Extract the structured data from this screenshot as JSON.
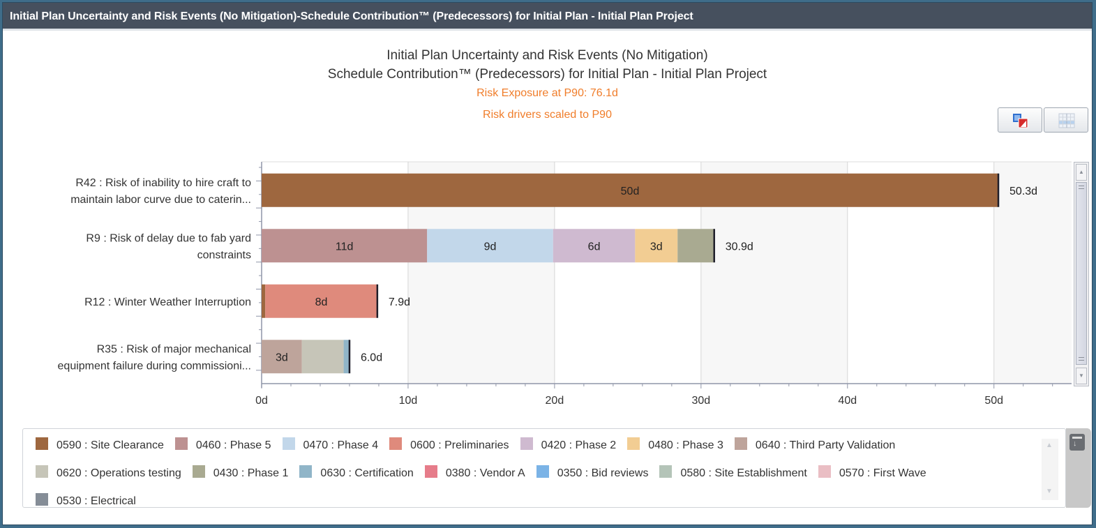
{
  "window": {
    "title": "Initial  Plan Uncertainty and Risk Events (No Mitigation)-Schedule Contribution™ (Predecessors) for Initial  Plan - Initial  Plan Project"
  },
  "toolbar": {
    "export_icon": "export-chart-icon",
    "grid_icon": "table-view-icon"
  },
  "chart_data": {
    "type": "bar",
    "orientation": "horizontal-stacked",
    "title": "Initial  Plan Uncertainty and Risk Events (No Mitigation)",
    "subtitle": "Schedule Contribution™ (Predecessors) for Initial  Plan - Initial  Plan Project",
    "annotations": [
      "Risk Exposure at P90: 76.1d",
      "Risk drivers scaled to P90"
    ],
    "xlabel": "",
    "ylabel": "",
    "xlim": [
      0,
      55.3
    ],
    "x_ticks": [
      0,
      10,
      20,
      30,
      40,
      50
    ],
    "x_tick_labels": [
      "0d",
      "10d",
      "20d",
      "30d",
      "40d",
      "50d"
    ],
    "grid": true,
    "legend_position": "bottom",
    "categories": [
      [
        "R42 : Risk of inability to hire craft to",
        "maintain labor curve due to caterin..."
      ],
      [
        "R9 : Risk of delay due to fab yard",
        "constraints"
      ],
      [
        "R12 : Winter Weather Interruption"
      ],
      [
        "R35 : Risk of major mechanical",
        "equipment failure during commissioni..."
      ]
    ],
    "totals": [
      50.3,
      30.9,
      7.9,
      6.0
    ],
    "total_labels": [
      "50.3d",
      "30.9d",
      "7.9d",
      "6.0d"
    ],
    "bars": [
      {
        "segments": [
          {
            "series": "0590 : Site Clearance",
            "value": 50.3,
            "label": "50d"
          }
        ]
      },
      {
        "segments": [
          {
            "series": "0460 : Phase 5",
            "value": 11.3,
            "label": "11d"
          },
          {
            "series": "0470 : Phase 4",
            "value": 8.6,
            "label": "9d"
          },
          {
            "series": "0420 : Phase 2",
            "value": 5.6,
            "label": "6d"
          },
          {
            "series": "0480 : Phase 3",
            "value": 2.9,
            "label": "3d"
          },
          {
            "series": "0430 : Phase 1",
            "value": 2.5,
            "label": ""
          }
        ]
      },
      {
        "segments": [
          {
            "series": "0590 : Site Clearance",
            "value": 0.25,
            "label": ""
          },
          {
            "series": "0600 : Preliminaries",
            "value": 7.65,
            "label": "8d"
          }
        ]
      },
      {
        "segments": [
          {
            "series": "0640 : Third Party Validation",
            "value": 2.75,
            "label": "3d"
          },
          {
            "series": "0620 : Operations testing",
            "value": 2.85,
            "label": ""
          },
          {
            "series": "0630 : Certification",
            "value": 0.4,
            "label": ""
          }
        ]
      }
    ],
    "series": [
      {
        "name": "0590 : Site Clearance",
        "color": "#9e673f"
      },
      {
        "name": "0460 : Phase 5",
        "color": "#bd9191"
      },
      {
        "name": "0470 : Phase 4",
        "color": "#c2d7ea"
      },
      {
        "name": "0600 : Preliminaries",
        "color": "#df8a7c"
      },
      {
        "name": "0420 : Phase 2",
        "color": "#cfbad0"
      },
      {
        "name": "0480 : Phase 3",
        "color": "#f2cd93"
      },
      {
        "name": "0640 : Third Party Validation",
        "color": "#bea49b"
      },
      {
        "name": "0620 : Operations testing",
        "color": "#c6c5b8"
      },
      {
        "name": "0430 : Phase 1",
        "color": "#a9aa91"
      },
      {
        "name": "0630 : Certification",
        "color": "#90b5c8"
      },
      {
        "name": "0380 : Vendor A",
        "color": "#e67c8a"
      },
      {
        "name": "0350 : Bid reviews",
        "color": "#7bb3e6"
      },
      {
        "name": "0580 : Site Establishment",
        "color": "#b4c4b8"
      },
      {
        "name": "0570 : First Wave",
        "color": "#eabec4"
      },
      {
        "name": "0530 : Electrical",
        "color": "#858d97"
      }
    ],
    "total_marker_color": "#1f1f2a"
  }
}
